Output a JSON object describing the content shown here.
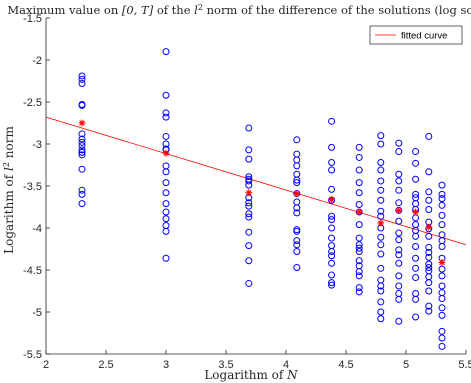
{
  "chart_data": {
    "type": "scatter",
    "title_parts": {
      "pre": "Maximum value on ",
      "interval": "[0, T]",
      "mid": " of the ",
      "norm_base": "l",
      "norm_exp": "2",
      "post": " norm of the difference of the solutions (log scale)"
    },
    "xlabel_parts": {
      "pre": "Logarithm of ",
      "var": "N"
    },
    "ylabel_parts": {
      "pre": "Logarithm of ",
      "norm_base": "l",
      "norm_exp": "2",
      "post": " norm"
    },
    "xlim": [
      2,
      5.5
    ],
    "ylim": [
      -5.5,
      -1.5
    ],
    "xticks": [
      2,
      2.5,
      3,
      3.5,
      4,
      4.5,
      5,
      5.5
    ],
    "xtick_labels": [
      "2",
      "2.5",
      "3",
      "3.5",
      "4",
      "4.5",
      "5",
      "5.5"
    ],
    "yticks": [
      -5.5,
      -5,
      -4.5,
      -4,
      -3.5,
      -3,
      -2.5,
      -2,
      -1.5
    ],
    "ytick_labels": [
      "-5.5",
      "-5",
      "-4.5",
      "-4",
      "-3.5",
      "-3",
      "-2.5",
      "-2",
      "-1.5"
    ],
    "grid": false,
    "legend": {
      "position": "top-right",
      "entries": [
        "fitted curve"
      ]
    },
    "colors": {
      "samples": "#0000ff",
      "means": "#ff0000",
      "fit": "#ff0000",
      "axis": "#262626"
    },
    "sample_series": [
      {
        "x": 2.3,
        "y": [
          -2.19,
          -2.23,
          -2.28,
          -2.53,
          -2.54,
          -2.88,
          -2.94,
          -2.98,
          -3.02,
          -3.07,
          -3.1,
          -3.13,
          -3.3,
          -3.55,
          -3.6,
          -3.71
        ]
      },
      {
        "x": 3.0,
        "y": [
          -1.9,
          -2.42,
          -2.63,
          -2.68,
          -2.91,
          -3.0,
          -3.06,
          -3.07,
          -3.26,
          -3.33,
          -3.46,
          -3.58,
          -3.71,
          -3.81,
          -3.89,
          -3.97,
          -4.04,
          -4.36
        ]
      },
      {
        "x": 3.69,
        "y": [
          -2.81,
          -3.07,
          -3.18,
          -3.39,
          -3.42,
          -3.44,
          -3.49,
          -3.64,
          -3.7,
          -3.74,
          -3.83,
          -3.87,
          -4.05,
          -4.21,
          -4.39,
          -4.66
        ]
      },
      {
        "x": 4.09,
        "y": [
          -2.95,
          -3.12,
          -3.19,
          -3.26,
          -3.36,
          -3.43,
          -3.46,
          -3.59,
          -3.69,
          -3.76,
          -3.82,
          -4.02,
          -4.04,
          -4.15,
          -4.2,
          -4.28,
          -4.47
        ]
      },
      {
        "x": 4.38,
        "y": [
          -2.73,
          -3.04,
          -3.22,
          -3.31,
          -3.54,
          -3.67,
          -3.86,
          -3.9,
          -4.0,
          -4.12,
          -4.21,
          -4.28,
          -4.33,
          -4.42,
          -4.56,
          -4.65,
          -4.68
        ]
      },
      {
        "x": 4.61,
        "y": [
          -3.04,
          -3.16,
          -3.31,
          -3.46,
          -3.58,
          -3.72,
          -3.81,
          -3.96,
          -4.12,
          -4.2,
          -4.24,
          -4.28,
          -4.39,
          -4.45,
          -4.52,
          -4.57,
          -4.71,
          -4.76
        ]
      },
      {
        "x": 4.79,
        "y": [
          -2.9,
          -3.0,
          -3.22,
          -3.31,
          -3.44,
          -3.55,
          -3.67,
          -3.8,
          -3.86,
          -4.0,
          -4.11,
          -4.2,
          -4.31,
          -4.48,
          -4.62,
          -4.69,
          -4.75,
          -4.88,
          -5.0,
          -5.08
        ]
      },
      {
        "x": 4.94,
        "y": [
          -2.99,
          -3.09,
          -3.36,
          -3.44,
          -3.55,
          -3.7,
          -3.79,
          -3.92,
          -4.06,
          -4.14,
          -4.26,
          -4.32,
          -4.42,
          -4.57,
          -4.69,
          -4.78,
          -4.85,
          -5.11
        ]
      },
      {
        "x": 5.08,
        "y": [
          -3.09,
          -3.23,
          -3.42,
          -3.6,
          -3.64,
          -3.71,
          -3.78,
          -3.88,
          -3.96,
          -4.03,
          -4.1,
          -4.22,
          -4.36,
          -4.48,
          -4.59,
          -4.78,
          -4.85,
          -5.06
        ]
      },
      {
        "x": 5.19,
        "y": [
          -2.91,
          -3.33,
          -3.57,
          -3.67,
          -3.78,
          -3.93,
          -4.01,
          -4.1,
          -4.23,
          -4.29,
          -4.35,
          -4.43,
          -4.47,
          -4.51,
          -4.58,
          -4.65,
          -4.75,
          -4.93,
          -4.99
        ]
      },
      {
        "x": 5.3,
        "y": [
          -3.49,
          -3.6,
          -3.65,
          -3.73,
          -3.85,
          -3.96,
          -4.08,
          -4.15,
          -4.22,
          -4.36,
          -4.49,
          -4.57,
          -4.69,
          -4.77,
          -4.84,
          -4.95,
          -5.04,
          -5.23,
          -5.31,
          -5.41
        ]
      }
    ],
    "mean_points": [
      {
        "x": 2.3,
        "y": -2.75
      },
      {
        "x": 3.0,
        "y": -3.11
      },
      {
        "x": 3.69,
        "y": -3.58
      },
      {
        "x": 4.09,
        "y": -3.59
      },
      {
        "x": 4.38,
        "y": -3.66
      },
      {
        "x": 4.61,
        "y": -3.81
      },
      {
        "x": 4.79,
        "y": -3.94
      },
      {
        "x": 4.94,
        "y": -3.79
      },
      {
        "x": 5.08,
        "y": -3.81
      },
      {
        "x": 5.19,
        "y": -3.99
      },
      {
        "x": 5.3,
        "y": -4.41
      }
    ],
    "fitted_curve": {
      "x": [
        2,
        5.5
      ],
      "y": [
        -2.68,
        -4.2
      ]
    }
  }
}
